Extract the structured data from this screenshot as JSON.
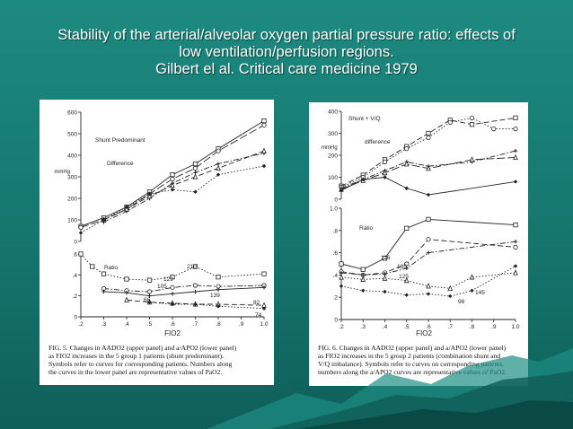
{
  "slide": {
    "title_lines": [
      "Stability of the arterial/alveolar oxygen partial pressure ratio: effects of",
      "low ventilation/perfusion regions.",
      "Gilbert el al. Critical care medicine 1979"
    ],
    "background_color": "#1a8078",
    "title_color": "#ffffff"
  },
  "chart_data": [
    {
      "type": "line",
      "panel": "left-upper",
      "ylabel": "mmHg",
      "ylim": [
        0,
        600
      ],
      "yticks": [
        "0",
        "100",
        "200",
        "300",
        "400",
        "500",
        "600"
      ],
      "xlim": [
        0.2,
        1.0
      ],
      "annotations": [
        "Shunt   Predominant",
        "Difference"
      ],
      "grid": false,
      "series": [
        {
          "style": "solid",
          "x": [
            0.2,
            0.3,
            0.4,
            0.5,
            0.6,
            0.7,
            0.8,
            1.0
          ],
          "y": [
            70,
            110,
            160,
            230,
            310,
            360,
            430,
            560
          ]
        },
        {
          "style": "long-dash",
          "x": [
            0.2,
            0.3,
            0.4,
            0.5,
            0.6,
            0.7,
            0.8,
            1.0
          ],
          "y": [
            65,
            100,
            150,
            220,
            290,
            340,
            420,
            540
          ]
        },
        {
          "style": "dash-dot",
          "x": [
            0.3,
            0.4,
            0.5,
            0.6,
            0.7,
            0.8,
            1.0
          ],
          "y": [
            90,
            140,
            200,
            270,
            320,
            360,
            410
          ]
        },
        {
          "style": "dash",
          "x": [
            0.3,
            0.4,
            0.5,
            0.6,
            0.7,
            0.8,
            1.0
          ],
          "y": [
            100,
            150,
            210,
            260,
            300,
            340,
            420
          ]
        },
        {
          "style": "dotted",
          "x": [
            0.2,
            0.3,
            0.4,
            0.5,
            0.6,
            0.7,
            0.8,
            1.0
          ],
          "y": [
            40,
            100,
            160,
            220,
            240,
            230,
            310,
            350
          ]
        }
      ]
    },
    {
      "type": "line",
      "panel": "left-lower",
      "xlabel": "FIO2",
      "xticks": [
        ".2",
        ".3",
        ".4",
        ".5",
        ".6",
        ".7",
        ".8",
        ".9",
        "1.0"
      ],
      "xlim": [
        0.2,
        1.0
      ],
      "ylim": [
        0,
        0.6
      ],
      "yticks": [
        "0",
        ".2",
        ".4",
        ".6"
      ],
      "annotations": [
        "Ratio"
      ],
      "data_labels": [
        "129",
        "210",
        "105",
        "66",
        "139",
        "82",
        "74"
      ],
      "grid": false,
      "series": [
        {
          "style": "dotted",
          "x": [
            0.2,
            0.25,
            0.3,
            0.4,
            0.5,
            0.6,
            0.7,
            0.8,
            1.0
          ],
          "y": [
            0.6,
            0.48,
            0.41,
            0.36,
            0.35,
            0.38,
            0.48,
            0.38,
            0.41
          ]
        },
        {
          "style": "dash-dot",
          "x": [
            0.3,
            0.4,
            0.5,
            0.6,
            0.7,
            0.8,
            1.0
          ],
          "y": [
            0.27,
            0.25,
            0.24,
            0.28,
            0.3,
            0.29,
            0.3
          ]
        },
        {
          "style": "solid",
          "x": [
            0.3,
            0.4,
            0.5,
            0.6,
            0.7,
            0.8,
            1.0
          ],
          "y": [
            0.24,
            0.23,
            0.2,
            0.22,
            0.24,
            0.26,
            0.28
          ]
        },
        {
          "style": "dash",
          "x": [
            0.4,
            0.5,
            0.6,
            0.7,
            0.8,
            1.0
          ],
          "y": [
            0.16,
            0.14,
            0.13,
            0.12,
            0.12,
            0.11
          ]
        },
        {
          "style": "dotted",
          "x": [
            0.5,
            0.6,
            0.7,
            0.8,
            1.0
          ],
          "y": [
            0.14,
            0.12,
            0.12,
            0.1,
            0.08
          ]
        }
      ]
    },
    {
      "type": "line",
      "panel": "right-upper",
      "ylabel": "mmHg",
      "ylim": [
        0,
        400
      ],
      "yticks": [
        "0",
        "100",
        "200",
        "300",
        "400"
      ],
      "xlim": [
        0.2,
        1.0
      ],
      "annotations": [
        "Shunt + V/Q",
        "difference"
      ],
      "grid": false,
      "series": [
        {
          "style": "dash",
          "x": [
            0.2,
            0.3,
            0.4,
            0.5,
            0.6,
            0.7,
            0.8,
            1.0
          ],
          "y": [
            60,
            110,
            180,
            240,
            300,
            360,
            340,
            370
          ]
        },
        {
          "style": "dotted",
          "x": [
            0.2,
            0.3,
            0.4,
            0.5,
            0.6,
            0.7,
            0.8,
            0.9,
            1.0
          ],
          "y": [
            55,
            100,
            170,
            230,
            280,
            350,
            370,
            320,
            320
          ]
        },
        {
          "style": "dash-dot",
          "x": [
            0.2,
            0.3,
            0.4,
            0.5,
            0.6,
            0.8,
            1.0
          ],
          "y": [
            50,
            90,
            130,
            170,
            150,
            170,
            220
          ]
        },
        {
          "style": "long-dash",
          "x": [
            0.2,
            0.3,
            0.4,
            0.5,
            0.6,
            0.8,
            1.0
          ],
          "y": [
            45,
            85,
            120,
            160,
            140,
            180,
            190
          ]
        },
        {
          "style": "solid",
          "x": [
            0.2,
            0.3,
            0.4,
            0.5,
            0.6,
            1.0
          ],
          "y": [
            40,
            90,
            100,
            50,
            20,
            80
          ]
        }
      ]
    },
    {
      "type": "line",
      "panel": "right-lower",
      "xlabel": "FIO2",
      "xticks": [
        ".2",
        ".3",
        ".4",
        ".5",
        ".6",
        ".7",
        ".8",
        ".9",
        "1.0"
      ],
      "xlim": [
        0.2,
        1.0
      ],
      "ylim": [
        0,
        1.0
      ],
      "yticks": [
        "0",
        ".2",
        ".4",
        ".6",
        ".8",
        "1.0"
      ],
      "annotations": [
        "Ratio"
      ],
      "data_labels": [
        "116",
        "135",
        "125",
        "145",
        "96"
      ],
      "grid": false,
      "series": [
        {
          "style": "solid",
          "x": [
            0.2,
            0.3,
            0.4,
            0.5,
            0.6,
            1.0
          ],
          "y": [
            0.5,
            0.45,
            0.55,
            0.82,
            0.9,
            0.85
          ]
        },
        {
          "style": "dash",
          "x": [
            0.2,
            0.3,
            0.4,
            0.5,
            0.6,
            1.0
          ],
          "y": [
            0.43,
            0.4,
            0.42,
            0.5,
            0.72,
            0.65
          ]
        },
        {
          "style": "dash-dot",
          "x": [
            0.2,
            0.3,
            0.4,
            0.5,
            0.6,
            1.0
          ],
          "y": [
            0.42,
            0.4,
            0.41,
            0.46,
            0.6,
            0.7
          ]
        },
        {
          "style": "dotted",
          "x": [
            0.2,
            0.3,
            0.4,
            0.5,
            0.6,
            0.7,
            0.8,
            1.0
          ],
          "y": [
            0.38,
            0.36,
            0.37,
            0.35,
            0.3,
            0.28,
            0.38,
            0.42
          ]
        },
        {
          "style": "dotted",
          "x": [
            0.2,
            0.3,
            0.4,
            0.5,
            0.6,
            0.7,
            0.8,
            1.0
          ],
          "y": [
            0.3,
            0.26,
            0.25,
            0.22,
            0.23,
            0.21,
            0.26,
            0.48
          ]
        }
      ]
    }
  ],
  "captions": {
    "left": [
      "FIG. 5.  Changes in AADO2 (upper panel) and a/APO2 (lower panel)",
      "as FIO2 increases in the 5 group 1 patients (shunt predominant).",
      "Symbols refer to curves for corresponding patients. Numbers along",
      "the curves in the lower panel are representative values of PaO2."
    ],
    "right": [
      "FIG. 6.  Changes in AADO2 (upper panel) and a/APO2 (lower panel)",
      "as FIO2 increases in the 5 group 2 patients (combination shunt and",
      "V/Q imbalance). Symbols refer to curves on corresponding patients,",
      "numbers along the a/APO2 curves are representative values of PaO2."
    ]
  }
}
